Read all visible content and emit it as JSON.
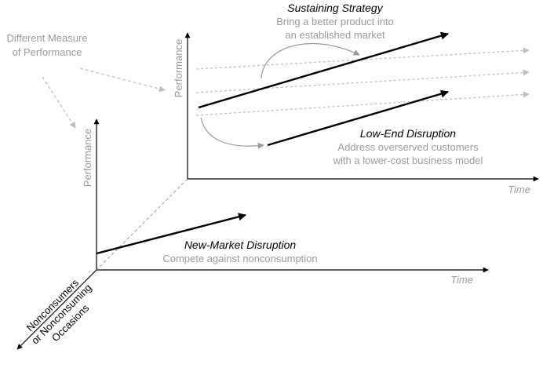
{
  "measure_label": {
    "line1": "Different Measure",
    "line2": "of Performance"
  },
  "sustaining": {
    "title": "Sustaining Strategy",
    "desc_line1": "Bring a better product into",
    "desc_line2": "an established market"
  },
  "low_end": {
    "title": "Low-End Disruption",
    "desc_line1": "Address overserved customers",
    "desc_line2": "with a lower-cost business model"
  },
  "new_market": {
    "title": "New-Market Disruption",
    "desc": "Compete against nonconsumption"
  },
  "axes": {
    "performance": "Performance",
    "time": "Time",
    "nonconsumers_line1": "Nonconsumers",
    "nonconsumers_line2": "or Nonconsuming",
    "nonconsumers_line3": "Occasions"
  },
  "colors": {
    "axis": "#000000",
    "trajectory": "#000000",
    "dashed": "#bdbdbd",
    "text_secondary": "#9a9a9a"
  }
}
